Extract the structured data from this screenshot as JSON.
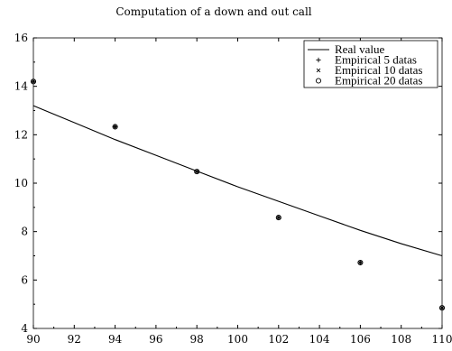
{
  "chart_data": {
    "type": "line",
    "title": "Computation of a down and out call",
    "xlabel": "",
    "ylabel": "",
    "xlim": [
      90,
      110
    ],
    "ylim": [
      4,
      16
    ],
    "xticks": [
      90,
      92,
      94,
      96,
      98,
      100,
      102,
      104,
      106,
      108,
      110
    ],
    "yticks": [
      4,
      6,
      8,
      10,
      12,
      14,
      16
    ],
    "grid": false,
    "legend_position": "top-right",
    "series": [
      {
        "name": "Real value",
        "marker": "line",
        "x": [
          90,
          92,
          94,
          96,
          98,
          100,
          102,
          104,
          106,
          108,
          110
        ],
        "y": [
          13.2,
          12.5,
          11.8,
          11.15,
          10.5,
          9.85,
          9.25,
          8.65,
          8.05,
          7.5,
          7.0
        ]
      },
      {
        "name": "Empirical 5 datas",
        "marker": "plus",
        "x": [
          90,
          94,
          98,
          102,
          106,
          110
        ],
        "y": [
          14.2,
          12.33,
          10.48,
          8.58,
          6.72,
          4.85
        ]
      },
      {
        "name": "Empirical 10 datas",
        "marker": "cross",
        "x": [
          90,
          94,
          98,
          102,
          106,
          110
        ],
        "y": [
          14.2,
          12.33,
          10.48,
          8.58,
          6.72,
          4.85
        ]
      },
      {
        "name": "Empirical 20 datas",
        "marker": "circle-plus",
        "x": [
          90,
          94,
          98,
          102,
          106,
          110
        ],
        "y": [
          14.2,
          12.33,
          10.48,
          8.58,
          6.72,
          4.85
        ]
      }
    ]
  }
}
